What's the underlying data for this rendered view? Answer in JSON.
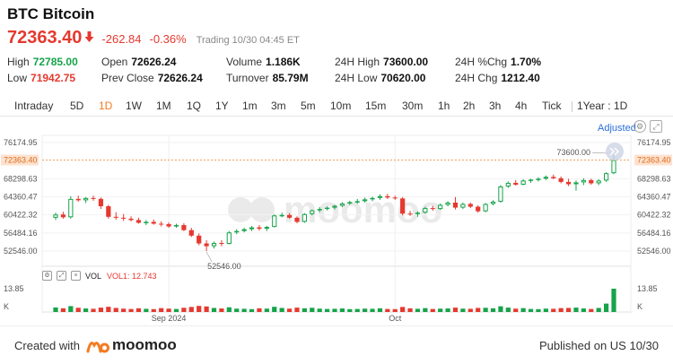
{
  "header": {
    "title": "BTC Bitcoin",
    "price": "72363.40",
    "change": "-262.84",
    "change_pct": "-0.36%",
    "status": "Trading  10/30 04:45 ET"
  },
  "stats": {
    "high_label": "High",
    "high_value": "72785.00",
    "low_label": "Low",
    "low_value": "71942.75",
    "open_label": "Open",
    "open_value": "72626.24",
    "prev_close_label": "Prev Close",
    "prev_close_value": "72626.24",
    "volume_label": "Volume",
    "volume_value": "1.186K",
    "turnover_label": "Turnover",
    "turnover_value": "85.79M",
    "h24_high_label": "24H High",
    "h24_high_value": "73600.00",
    "h24_low_label": "24H Low",
    "h24_low_value": "70620.00",
    "h24_pctchg_label": "24H %Chg",
    "h24_pctchg_value": "1.70%",
    "h24_chg_label": "24H Chg",
    "h24_chg_value": "1212.40"
  },
  "tabs": [
    "Intraday",
    "5D",
    "1D",
    "1W",
    "1M",
    "1Q",
    "1Y",
    "1m",
    "3m",
    "5m",
    "10m",
    "15m",
    "30m",
    "1h",
    "2h",
    "3h",
    "4h",
    "Tick"
  ],
  "active_tab": "1D",
  "range_selector": "1Year : 1D",
  "adjusted_label": "Adjusted",
  "colors": {
    "up": "#16a34a",
    "down": "#e5392f",
    "accent": "#f47b20",
    "last_price_line": "#f0a060"
  },
  "icons": {
    "arrow": "arrow-down-icon",
    "settings": "gear-icon",
    "expand": "expand-icon",
    "scroll": "double-chevron-right-icon",
    "vol_settings": "settings-icon",
    "vol_expand": "expand-icon",
    "vol_close": "close-icon",
    "logo": "moomoo-logo-icon"
  },
  "volume_panel": {
    "name": "VOL",
    "indicator": "VOL1: 12.743",
    "max_label": "13.85",
    "unit_label": "K"
  },
  "watermark": "moomoo",
  "footer": {
    "created_with": "Created with",
    "brand": "moomoo",
    "published": "Published on US 10/30"
  },
  "chart_data": {
    "type": "candlestick",
    "y_ticks": [
      "76174.95",
      "72363.40",
      "68298.63",
      "64360.47",
      "60422.32",
      "56484.16",
      "52546.00"
    ],
    "ylim": [
      52546.0,
      76174.95
    ],
    "last_price": 72363.4,
    "last_price_label": "72363.40",
    "annotations": [
      {
        "label": "73600.00",
        "index": 74,
        "value": 73600.0
      },
      {
        "label": "52546.00",
        "index": 20,
        "value": 52546.0
      }
    ],
    "x_labels": [
      {
        "label": "Sep 2024",
        "index": 15
      },
      {
        "label": "Oct",
        "index": 45
      }
    ],
    "candles": [
      [
        59800,
        60900,
        59300,
        60500
      ],
      [
        60500,
        61100,
        59600,
        59900
      ],
      [
        59900,
        64500,
        59600,
        63900
      ],
      [
        63900,
        64600,
        63300,
        63600
      ],
      [
        63600,
        64300,
        63000,
        64100
      ],
      [
        64100,
        64600,
        63500,
        63900
      ],
      [
        63900,
        64200,
        61700,
        62300
      ],
      [
        62300,
        62600,
        59600,
        60000
      ],
      [
        60000,
        61000,
        59400,
        59800
      ],
      [
        59800,
        60600,
        59100,
        59600
      ],
      [
        59600,
        60100,
        59000,
        59300
      ],
      [
        59300,
        59800,
        58500,
        58700
      ],
      [
        58700,
        59300,
        58200,
        58900
      ],
      [
        58900,
        59400,
        58300,
        58500
      ],
      [
        58500,
        59000,
        57900,
        58400
      ],
      [
        58400,
        58800,
        57600,
        57900
      ],
      [
        57900,
        58500,
        57600,
        58200
      ],
      [
        58200,
        58600,
        56900,
        57100
      ],
      [
        57100,
        57600,
        55600,
        55900
      ],
      [
        55900,
        56400,
        53800,
        54200
      ],
      [
        54200,
        54900,
        52546,
        53600
      ],
      [
        53600,
        54600,
        53100,
        54300
      ],
      [
        54300,
        54900,
        53600,
        54100
      ],
      [
        54100,
        56900,
        54000,
        56600
      ],
      [
        56600,
        57300,
        56200,
        56900
      ],
      [
        56900,
        57600,
        56600,
        57300
      ],
      [
        57300,
        58000,
        56900,
        57700
      ],
      [
        57700,
        58200,
        57000,
        57400
      ],
      [
        57400,
        58000,
        56900,
        57800
      ],
      [
        57800,
        60500,
        57700,
        60300
      ],
      [
        60300,
        60900,
        59900,
        60400
      ],
      [
        60400,
        60800,
        59600,
        59800
      ],
      [
        59800,
        60100,
        58600,
        58900
      ],
      [
        58900,
        60800,
        58700,
        60600
      ],
      [
        60600,
        61600,
        60300,
        61400
      ],
      [
        61400,
        62100,
        61000,
        61700
      ],
      [
        61700,
        62300,
        61400,
        62000
      ],
      [
        62000,
        62600,
        61600,
        62400
      ],
      [
        62400,
        63200,
        62100,
        62900
      ],
      [
        62900,
        63500,
        62600,
        63200
      ],
      [
        63200,
        63900,
        62800,
        63400
      ],
      [
        63400,
        64200,
        63100,
        63800
      ],
      [
        63800,
        64400,
        63400,
        64100
      ],
      [
        64100,
        64900,
        63700,
        64500
      ],
      [
        64500,
        65000,
        63900,
        64200
      ],
      [
        64200,
        64600,
        63700,
        64000
      ],
      [
        64000,
        64300,
        60300,
        60700
      ],
      [
        60700,
        61300,
        60200,
        60600
      ],
      [
        60600,
        61200,
        60000,
        60900
      ],
      [
        60900,
        62200,
        60700,
        61900
      ],
      [
        61900,
        62400,
        61300,
        61700
      ],
      [
        61700,
        62900,
        61500,
        62600
      ],
      [
        62600,
        63400,
        62300,
        63100
      ],
      [
        63100,
        64300,
        61600,
        62000
      ],
      [
        62000,
        63100,
        61700,
        62800
      ],
      [
        62800,
        63100,
        61900,
        62200
      ],
      [
        62200,
        62500,
        60900,
        61200
      ],
      [
        61200,
        63000,
        61000,
        62800
      ],
      [
        62800,
        63600,
        62500,
        63300
      ],
      [
        63300,
        66900,
        63100,
        66600
      ],
      [
        66600,
        67700,
        66300,
        67400
      ],
      [
        67400,
        68000,
        66800,
        67000
      ],
      [
        67000,
        68200,
        66900,
        67900
      ],
      [
        67900,
        68300,
        67400,
        68100
      ],
      [
        68100,
        68600,
        67700,
        68300
      ],
      [
        68300,
        69000,
        68000,
        68700
      ],
      [
        68700,
        69200,
        68200,
        68400
      ],
      [
        68400,
        68800,
        67300,
        67600
      ],
      [
        67600,
        68300,
        66700,
        67100
      ],
      [
        67100,
        67900,
        65700,
        67500
      ],
      [
        67500,
        68400,
        66900,
        68000
      ],
      [
        68000,
        68300,
        67000,
        67300
      ],
      [
        67300,
        68200,
        66900,
        67900
      ],
      [
        67900,
        69700,
        67600,
        69500
      ],
      [
        69500,
        73600,
        69300,
        72363.4
      ]
    ],
    "volumes": [
      2.7,
      2.2,
      3.5,
      2.5,
      2.1,
      1.9,
      2.6,
      3.1,
      2.4,
      2.0,
      1.8,
      2.2,
      1.9,
      1.7,
      2.3,
      2.0,
      1.8,
      2.5,
      3.0,
      3.6,
      3.3,
      2.4,
      2.1,
      2.8,
      2.0,
      1.9,
      1.7,
      2.2,
      2.0,
      3.1,
      2.4,
      2.0,
      2.6,
      2.2,
      2.5,
      2.0,
      1.8,
      1.9,
      2.1,
      1.7,
      1.8,
      2.0,
      1.9,
      2.2,
      1.8,
      1.7,
      3.0,
      2.2,
      1.9,
      2.3,
      1.8,
      2.0,
      2.1,
      2.6,
      2.0,
      1.9,
      2.4,
      2.5,
      2.2,
      3.4,
      2.6,
      2.0,
      2.3,
      1.8,
      1.7,
      2.0,
      1.9,
      2.3,
      2.4,
      2.6,
      2.1,
      1.8,
      2.4,
      5.0,
      13.85
    ]
  }
}
